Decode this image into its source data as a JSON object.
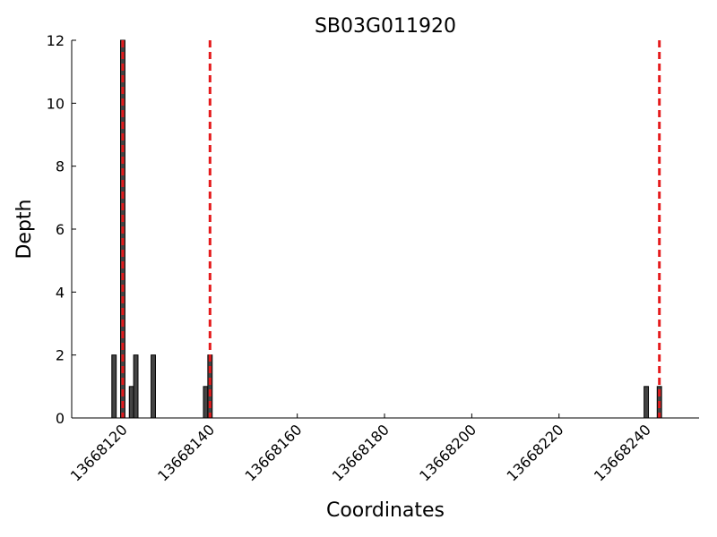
{
  "chart_data": {
    "type": "bar",
    "title": "SB03G011920",
    "x_label": "Coordinates",
    "y_label": "Depth",
    "x": [
      13668118,
      13668120,
      13668122,
      13668123,
      13668127,
      13668139,
      13668140,
      13668240,
      13668243
    ],
    "values": [
      2,
      12,
      1,
      2,
      2,
      1,
      2,
      1,
      1
    ],
    "color": "#444444",
    "vlines": {
      "x": [
        13668120,
        13668140,
        13668243
      ],
      "color": "#e41a1c",
      "style": "dashed"
    },
    "xlim": [
      13668108.3,
      13668252.1
    ],
    "xticks": [
      13668120,
      13668140,
      13668160,
      13668180,
      13668200,
      13668220,
      13668240
    ],
    "ylim": [
      0,
      12
    ],
    "yticks": [
      0,
      2,
      4,
      6,
      8,
      10,
      12
    ],
    "grid": false
  }
}
